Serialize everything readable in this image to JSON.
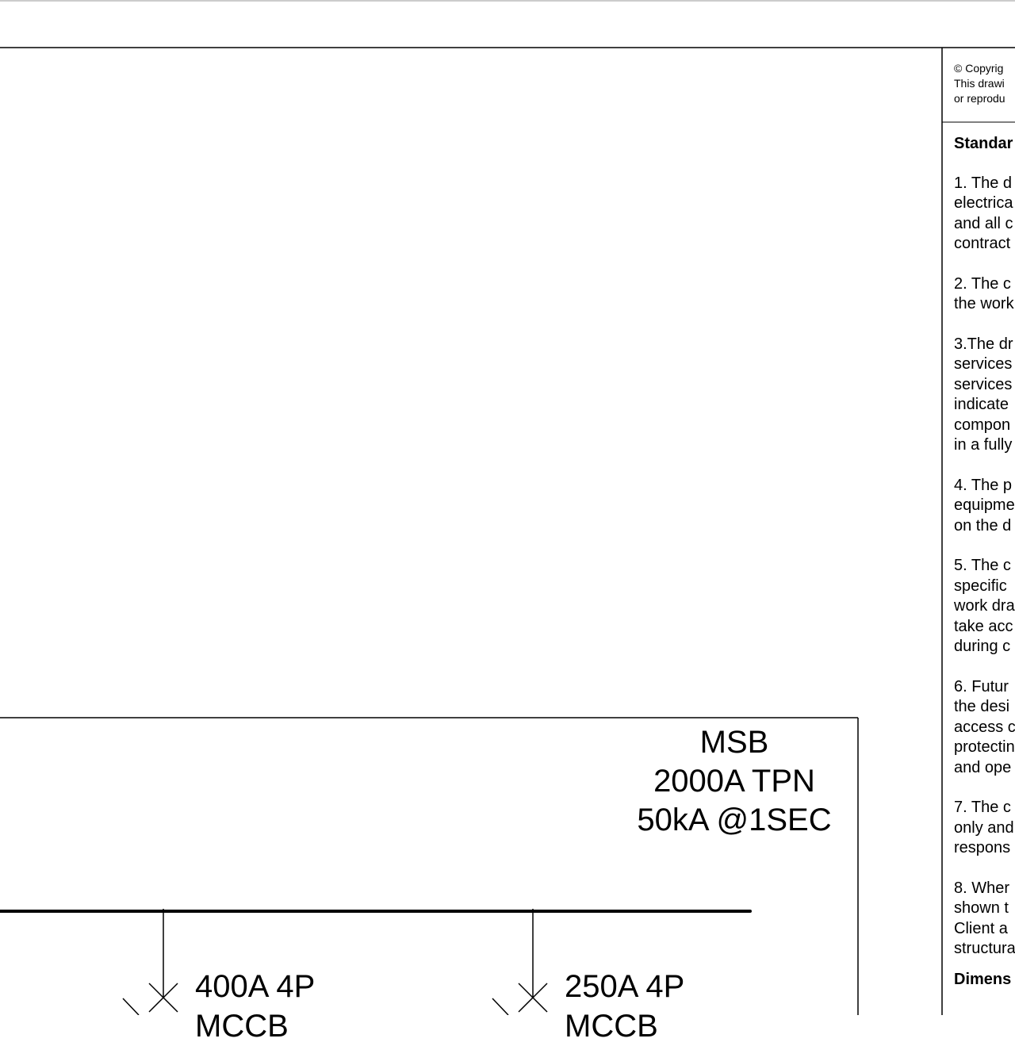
{
  "msb": {
    "lines": [
      "MSB",
      "2000A TPN",
      "50kA @1SEC"
    ]
  },
  "breakers": [
    {
      "lines": [
        "400A 4P",
        "MCCB"
      ]
    },
    {
      "lines": [
        "250A 4P",
        "MCCB"
      ]
    }
  ],
  "copyright": {
    "lines": [
      "© Copyrig",
      "This drawi",
      "or reprodu"
    ]
  },
  "notes": {
    "heading": "Standar",
    "items": [
      [
        "1. The d",
        "electrica",
        "and all c",
        "contract"
      ],
      [
        "2. The c",
        "the work"
      ],
      [
        "3.The dr",
        "services",
        "services",
        "indicate",
        "compon",
        "in a fully"
      ],
      [
        "4. The p",
        "equipme",
        "on the d"
      ],
      [
        "5. The c",
        "specific",
        "work dra",
        "take acc",
        "during c"
      ],
      [
        "6. Futur",
        "the desi",
        "access c",
        "protectin",
        "and ope"
      ],
      [
        "7. The c",
        "only and",
        "respons"
      ],
      [
        "8. Wher",
        "shown t",
        "Client a",
        "structura"
      ]
    ],
    "dimensions_heading": "Dimens"
  }
}
